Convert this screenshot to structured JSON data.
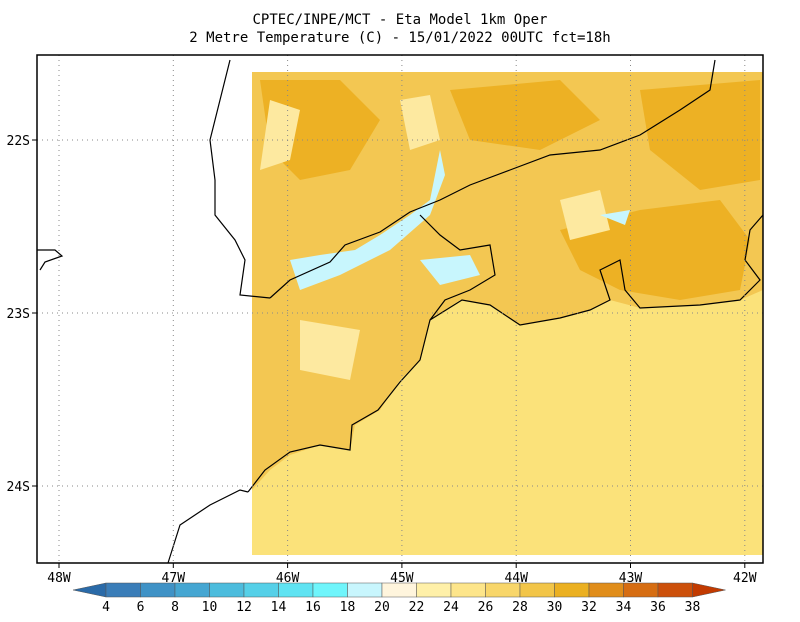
{
  "title": {
    "line1": "CPTEC/INPE/MCT -  Eta Model 1km Oper",
    "line2": "2 Metre Temperature (C) - 15/01/2022 00UTC fct=18h"
  },
  "lat_labels": [
    "22S",
    "23S",
    "24S"
  ],
  "lon_labels": [
    "48W",
    "47W",
    "46W",
    "45W",
    "44W",
    "43W",
    "42W"
  ],
  "colorbar": {
    "levels": [
      4,
      6,
      8,
      10,
      12,
      14,
      16,
      18,
      20,
      22,
      24,
      26,
      28,
      30,
      32,
      34,
      36,
      38
    ],
    "colors": [
      "#2a6aa8",
      "#3a7db8",
      "#3f92c6",
      "#45a6d2",
      "#4cbcdd",
      "#55d0e8",
      "#5fe3f2",
      "#6ff5fb",
      "#c8f6fd",
      "#fff5dd",
      "#fff0a8",
      "#fde58a",
      "#f8d66a",
      "#f2c548",
      "#ebb021",
      "#e08d1a",
      "#d66d12",
      "#cc500b",
      "#c23a00"
    ]
  }
}
